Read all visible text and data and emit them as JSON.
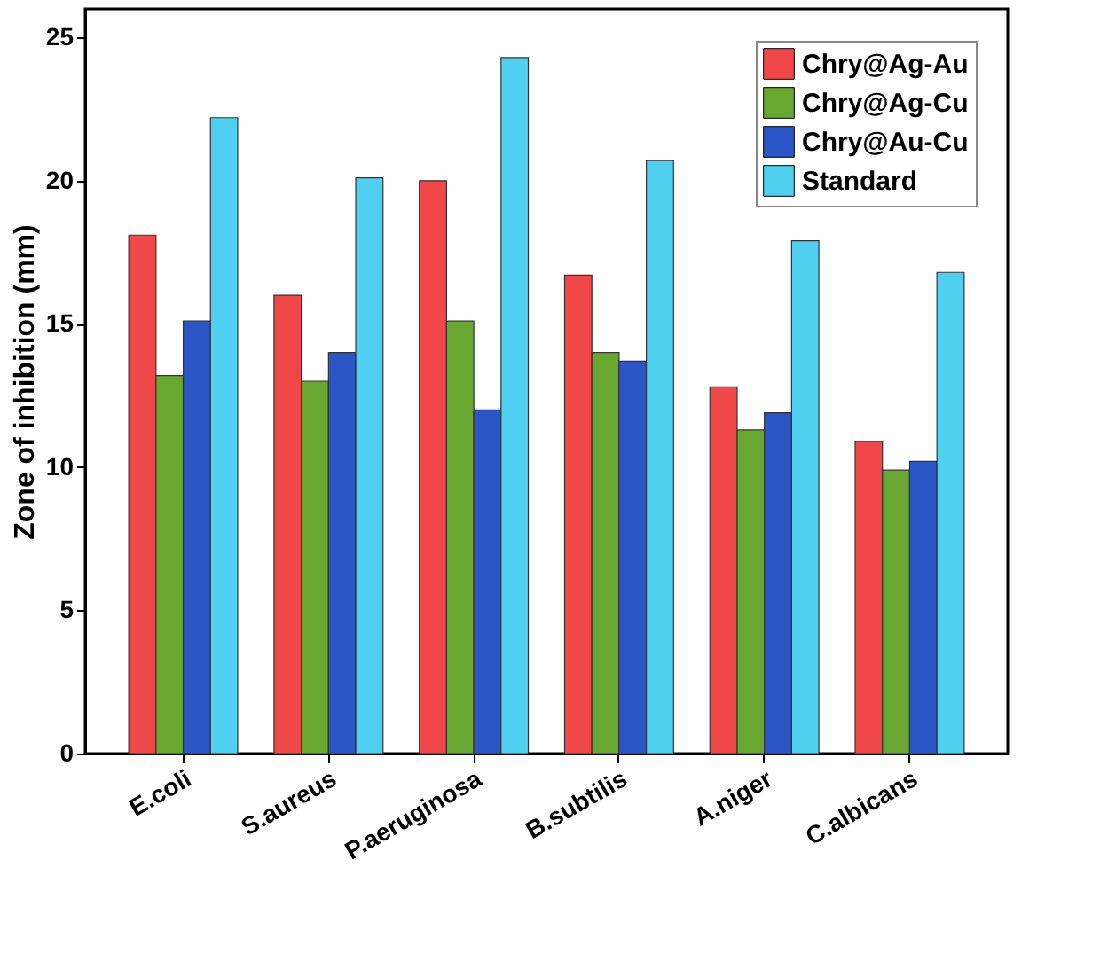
{
  "chart_data": {
    "type": "bar",
    "ylabel": "Zone of inhibition (mm)",
    "categories": [
      "E.coli",
      "S.aureus",
      "P.aeruginosa",
      "B.subtilis",
      "A.niger",
      "C.albicans"
    ],
    "series": [
      {
        "name": "Chry@Ag-Au",
        "color": "#f04848",
        "values": [
          18.1,
          16.0,
          20.0,
          16.7,
          12.8,
          10.9
        ]
      },
      {
        "name": "Chry@Ag-Cu",
        "color": "#68a830",
        "values": [
          13.2,
          13.0,
          15.1,
          14.0,
          11.3,
          9.9
        ]
      },
      {
        "name": "Chry@Au-Cu",
        "color": "#2a56c8",
        "values": [
          15.1,
          14.0,
          12.0,
          13.7,
          11.9,
          10.2
        ]
      },
      {
        "name": "Standard",
        "color": "#50d0f0",
        "values": [
          22.2,
          20.1,
          24.3,
          20.7,
          17.9,
          16.8
        ]
      }
    ],
    "ylim": [
      0,
      26
    ],
    "yticks": [
      0,
      5,
      10,
      15,
      20,
      25
    ],
    "grid": false,
    "legend": "top right"
  }
}
